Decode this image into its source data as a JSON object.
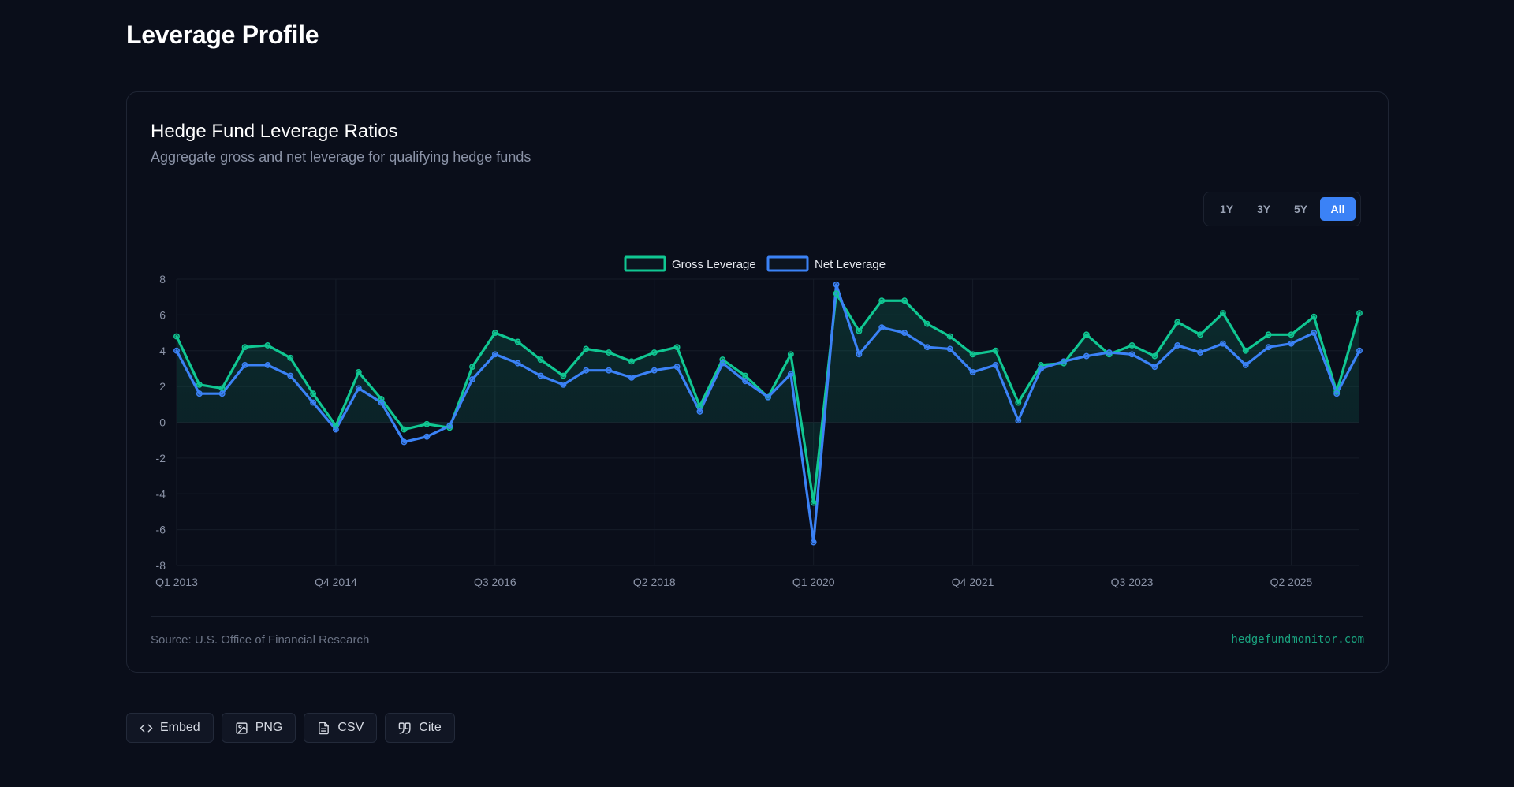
{
  "page": {
    "title": "Leverage Profile"
  },
  "card": {
    "title": "Hedge Fund Leverage Ratios",
    "subtitle": "Aggregate gross and net leverage for qualifying hedge funds",
    "source": "Source: U.S. Office of Financial Research",
    "site": "hedgefundmonitor.com"
  },
  "range_buttons": [
    {
      "label": "1Y",
      "active": false
    },
    {
      "label": "3Y",
      "active": false
    },
    {
      "label": "5Y",
      "active": false
    },
    {
      "label": "All",
      "active": true
    }
  ],
  "actions": [
    {
      "label": "Embed",
      "icon": "code-icon"
    },
    {
      "label": "PNG",
      "icon": "image-icon"
    },
    {
      "label": "CSV",
      "icon": "file-spreadsheet-icon"
    },
    {
      "label": "Cite",
      "icon": "quote-icon"
    }
  ],
  "colors": {
    "gross": "#10c792",
    "net": "#3b82f6",
    "accent": "#3b82f6",
    "background": "#0a0e1a"
  },
  "chart_data": {
    "type": "line",
    "title": "",
    "xlabel": "",
    "ylabel": "",
    "ylim": [
      -8,
      8
    ],
    "yticks": [
      8,
      6,
      4,
      2,
      0,
      -2,
      -4,
      -6,
      -8
    ],
    "grid": true,
    "legend": "top-center",
    "x_tick_labels": [
      "Q1 2013",
      "Q4 2014",
      "Q3 2016",
      "Q2 2018",
      "Q1 2020",
      "Q4 2021",
      "Q3 2023",
      "Q2 2025"
    ],
    "x_tick_every": 7,
    "area_under": "Gross Leverage",
    "series": [
      {
        "name": "Gross Leverage",
        "values": [
          4.8,
          2.1,
          1.9,
          4.2,
          4.3,
          3.6,
          1.6,
          -0.2,
          2.8,
          1.3,
          -0.4,
          -0.1,
          -0.3,
          3.1,
          5.0,
          4.5,
          3.5,
          2.6,
          4.1,
          3.9,
          3.4,
          3.9,
          4.2,
          0.9,
          3.5,
          2.6,
          1.4,
          3.8,
          -4.5,
          7.2,
          5.1,
          6.8,
          6.8,
          5.5,
          4.8,
          3.8,
          4.0,
          1.1,
          3.2,
          3.3,
          4.9,
          3.8,
          4.3,
          3.7,
          5.6,
          4.9,
          6.1,
          4.0,
          4.9,
          4.9,
          5.9,
          1.7,
          6.1
        ]
      },
      {
        "name": "Net Leverage",
        "values": [
          4.0,
          1.6,
          1.6,
          3.2,
          3.2,
          2.6,
          1.1,
          -0.4,
          1.9,
          1.1,
          -1.1,
          -0.8,
          -0.2,
          2.4,
          3.8,
          3.3,
          2.6,
          2.1,
          2.9,
          2.9,
          2.5,
          2.9,
          3.1,
          0.6,
          3.3,
          2.3,
          1.4,
          2.7,
          -6.7,
          7.7,
          3.8,
          5.3,
          5.0,
          4.2,
          4.1,
          2.8,
          3.2,
          0.1,
          3.0,
          3.4,
          3.7,
          3.9,
          3.8,
          3.1,
          4.3,
          3.9,
          4.4,
          3.2,
          4.2,
          4.4,
          5.0,
          1.6,
          4.0
        ]
      }
    ]
  }
}
